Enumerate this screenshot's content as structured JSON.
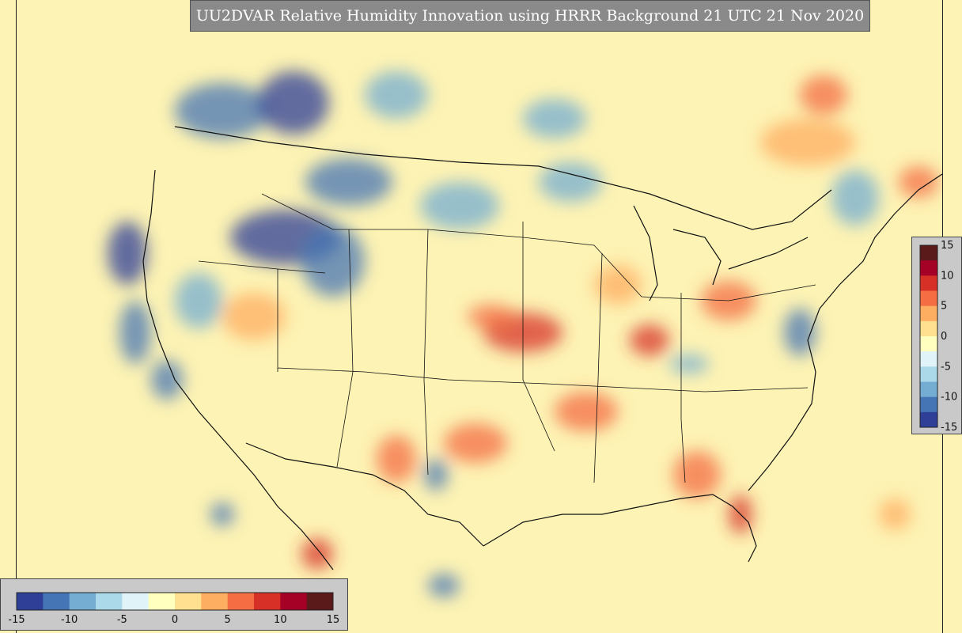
{
  "title": "UU2DVAR Relative Humidity Innovation using HRRR Background 21 UTC 21 Nov 2020",
  "colorbar": {
    "min": -15,
    "max": 15,
    "vertical_ticks": [
      "15",
      "10",
      "5",
      "0",
      "-5",
      "-10",
      "-15"
    ],
    "horizontal_ticks": [
      "-15",
      "-10",
      "-5",
      "0",
      "5",
      "10",
      "15"
    ],
    "colors": [
      "#2f3f97",
      "#4575b4",
      "#74add1",
      "#abd9e9",
      "#e0f3f8",
      "#ffffbf",
      "#fee090",
      "#fdae61",
      "#f46d43",
      "#d73027",
      "#a50026",
      "#5a1a1a"
    ]
  },
  "map": {
    "background_color": "#fdf3b4",
    "coastline_color": "#111111"
  }
}
